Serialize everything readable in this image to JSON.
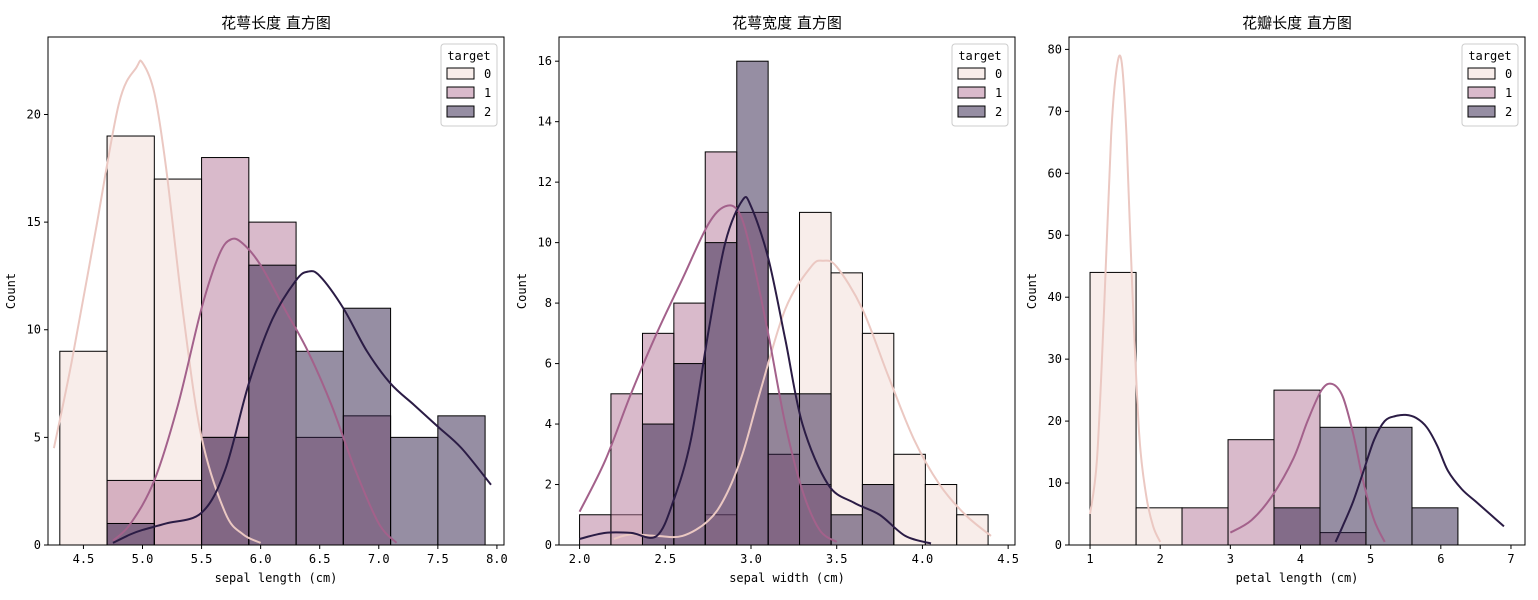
{
  "chart_data": [
    {
      "type": "histogram",
      "title": "花萼长度 直方图",
      "xlabel": "sepal length (cm)",
      "ylabel": "Count",
      "xlim": [
        4.2,
        8.06
      ],
      "ylim": [
        0,
        23.6
      ],
      "xticks": [
        4.5,
        5.0,
        5.5,
        6.0,
        6.5,
        7.0,
        7.5,
        8.0
      ],
      "xtick_labels": [
        "4.5",
        "5.0",
        "5.5",
        "6.0",
        "6.5",
        "7.0",
        "7.5",
        "8.0"
      ],
      "yticks": [
        0,
        5,
        10,
        15,
        20
      ],
      "ytick_labels": [
        "0",
        "5",
        "10",
        "15",
        "20"
      ],
      "legend": {
        "title": "target",
        "position": "top-right",
        "labels": [
          "0",
          "1",
          "2"
        ]
      },
      "bin_edges": [
        4.3,
        4.7,
        5.1,
        5.5,
        5.9,
        6.3,
        6.7,
        7.1,
        7.5,
        7.9
      ],
      "series": [
        {
          "name": "0",
          "counts": [
            9,
            19,
            17,
            5,
            0,
            0,
            0,
            0,
            0
          ],
          "kde": {
            "x": [
              4.25,
              4.4,
              4.6,
              4.8,
              4.95,
              5.0,
              5.1,
              5.2,
              5.35,
              5.5,
              5.7,
              5.85,
              6.0
            ],
            "y": [
              4.5,
              8.5,
              14.5,
              20.5,
              22.2,
              22.4,
              21.0,
              17.5,
              10.5,
              5.0,
              1.5,
              0.5,
              0.1
            ]
          }
        },
        {
          "name": "1",
          "counts": [
            0,
            3,
            3,
            18,
            15,
            5,
            6,
            0,
            0
          ],
          "kde": {
            "x": [
              4.75,
              4.9,
              5.1,
              5.3,
              5.5,
              5.65,
              5.75,
              5.85,
              6.0,
              6.2,
              6.4,
              6.6,
              6.8,
              7.0,
              7.15
            ],
            "y": [
              0.2,
              1.0,
              3.0,
              6.5,
              11.0,
              13.5,
              14.2,
              14.0,
              13.0,
              11.0,
              9.0,
              6.5,
              3.5,
              1.0,
              0.1
            ]
          }
        },
        {
          "name": "2",
          "counts": [
            0,
            1,
            0,
            5,
            13,
            9,
            11,
            5,
            6
          ],
          "kde": {
            "x": [
              4.75,
              4.9,
              5.0,
              5.2,
              5.5,
              5.7,
              5.9,
              6.1,
              6.3,
              6.4,
              6.5,
              6.7,
              6.9,
              7.1,
              7.3,
              7.5,
              7.7,
              7.95
            ],
            "y": [
              0.1,
              0.5,
              0.7,
              1.0,
              1.5,
              3.5,
              7.5,
              10.5,
              12.3,
              12.7,
              12.5,
              11.0,
              9.0,
              7.5,
              6.5,
              5.5,
              4.5,
              2.8
            ]
          }
        }
      ]
    },
    {
      "type": "histogram",
      "title": "花萼宽度 直方图",
      "xlabel": "sepal width (cm)",
      "ylabel": "Count",
      "xlim": [
        1.88,
        4.54
      ],
      "ylim": [
        0,
        16.8
      ],
      "xticks": [
        2.0,
        2.5,
        3.0,
        3.5,
        4.0,
        4.5
      ],
      "xtick_labels": [
        "2.0",
        "2.5",
        "3.0",
        "3.5",
        "4.0",
        "4.5"
      ],
      "yticks": [
        0,
        2,
        4,
        6,
        8,
        10,
        12,
        14,
        16
      ],
      "ytick_labels": [
        "0",
        "2",
        "4",
        "6",
        "8",
        "10",
        "12",
        "14",
        "16"
      ],
      "legend": {
        "title": "target",
        "position": "top-right",
        "labels": [
          "0",
          "1",
          "2"
        ]
      },
      "bin_edges": [
        2.0,
        2.183,
        2.367,
        2.55,
        2.733,
        2.917,
        3.1,
        3.283,
        3.467,
        3.65,
        3.833,
        4.017,
        4.2,
        4.383
      ],
      "series": [
        {
          "name": "0",
          "counts": [
            0,
            1,
            0,
            0,
            1,
            0,
            5,
            11,
            9,
            7,
            3,
            2,
            1
          ],
          "kde": {
            "x": [
              2.2,
              2.3,
              2.45,
              2.6,
              2.75,
              2.85,
              2.95,
              3.05,
              3.2,
              3.35,
              3.42,
              3.5,
              3.65,
              3.8,
              3.95,
              4.1,
              4.25,
              4.4
            ],
            "y": [
              0.2,
              0.35,
              0.3,
              0.3,
              0.8,
              1.6,
              3.0,
              5.0,
              7.8,
              9.2,
              9.4,
              9.2,
              7.8,
              5.6,
              3.5,
              2.0,
              1.0,
              0.3
            ]
          }
        },
        {
          "name": "1",
          "counts": [
            1,
            5,
            7,
            8,
            13,
            11,
            3,
            2,
            0,
            0,
            0,
            0,
            0
          ],
          "kde": {
            "x": [
              2.0,
              2.15,
              2.3,
              2.45,
              2.6,
              2.75,
              2.85,
              2.93,
              3.0,
              3.1,
              3.2,
              3.3,
              3.4,
              3.5
            ],
            "y": [
              1.1,
              2.8,
              5.0,
              7.0,
              8.8,
              10.6,
              11.2,
              11.0,
              9.7,
              7.0,
              4.0,
              1.8,
              0.5,
              0.1
            ]
          }
        },
        {
          "name": "2",
          "counts": [
            0,
            0,
            4,
            6,
            10,
            16,
            5,
            5,
            1,
            2,
            0,
            0,
            0
          ],
          "kde": {
            "x": [
              2.0,
              2.15,
              2.3,
              2.45,
              2.55,
              2.65,
              2.75,
              2.85,
              2.95,
              3.0,
              3.1,
              3.2,
              3.3,
              3.45,
              3.6,
              3.75,
              3.9,
              4.05
            ],
            "y": [
              0.2,
              0.4,
              0.4,
              0.3,
              1.5,
              3.5,
              7.0,
              10.0,
              11.4,
              11.2,
              9.5,
              6.8,
              4.0,
              2.0,
              1.4,
              1.0,
              0.3,
              0.05
            ]
          }
        }
      ]
    },
    {
      "type": "histogram",
      "title": "花瓣长度 直方图",
      "xlabel": "petal length (cm)",
      "ylabel": "Count",
      "xlim": [
        0.7,
        7.2
      ],
      "ylim": [
        0,
        82
      ],
      "xticks": [
        1,
        2,
        3,
        4,
        5,
        6,
        7
      ],
      "xtick_labels": [
        "1",
        "2",
        "3",
        "4",
        "5",
        "6",
        "7"
      ],
      "yticks": [
        0,
        10,
        20,
        30,
        40,
        50,
        60,
        70,
        80
      ],
      "ytick_labels": [
        "0",
        "10",
        "20",
        "30",
        "40",
        "50",
        "60",
        "70",
        "80"
      ],
      "legend": {
        "title": "target",
        "position": "top-right",
        "labels": [
          "0",
          "1",
          "2"
        ]
      },
      "bin_edges": [
        1.0,
        1.656,
        2.311,
        2.967,
        3.622,
        4.278,
        4.933,
        5.589,
        6.244,
        6.9
      ],
      "series": [
        {
          "name": "0",
          "counts": [
            44,
            6,
            0,
            0,
            0,
            0,
            0,
            0,
            0
          ],
          "kde": {
            "x": [
              1.0,
              1.1,
              1.2,
              1.3,
              1.38,
              1.45,
              1.52,
              1.6,
              1.7,
              1.8,
              1.9,
              2.0
            ],
            "y": [
              5,
              14,
              38,
              66,
              77,
              78,
              66,
              42,
              18,
              8,
              3,
              0.5
            ]
          }
        },
        {
          "name": "1",
          "counts": [
            0,
            0,
            6,
            17,
            25,
            2,
            0,
            0,
            0
          ],
          "kde": {
            "x": [
              3.0,
              3.3,
              3.6,
              3.9,
              4.1,
              4.3,
              4.45,
              4.6,
              4.75,
              4.9,
              5.05,
              5.2
            ],
            "y": [
              2,
              4,
              8,
              14,
              20,
              25,
              26,
              24,
              18,
              10,
              4,
              0.5
            ]
          }
        },
        {
          "name": "2",
          "counts": [
            0,
            0,
            0,
            0,
            6,
            19,
            19,
            6,
            0
          ],
          "kde": {
            "x": [
              4.5,
              4.6,
              4.75,
              4.9,
              5.05,
              5.2,
              5.35,
              5.5,
              5.65,
              5.8,
              5.95,
              6.1,
              6.3,
              6.5,
              6.7,
              6.9
            ],
            "y": [
              0.5,
              3,
              7,
              12,
              17,
              20,
              20.8,
              21,
              20.5,
              19,
              16,
              12,
              9,
              7,
              5,
              3
            ]
          }
        }
      ]
    }
  ],
  "colors": {
    "hue": [
      "#f1dbd6",
      "#b47698",
      "#2d1d47"
    ],
    "kde": [
      "#ebc8c2",
      "#a3618b",
      "#2b1c45"
    ],
    "edge": "#000000"
  }
}
